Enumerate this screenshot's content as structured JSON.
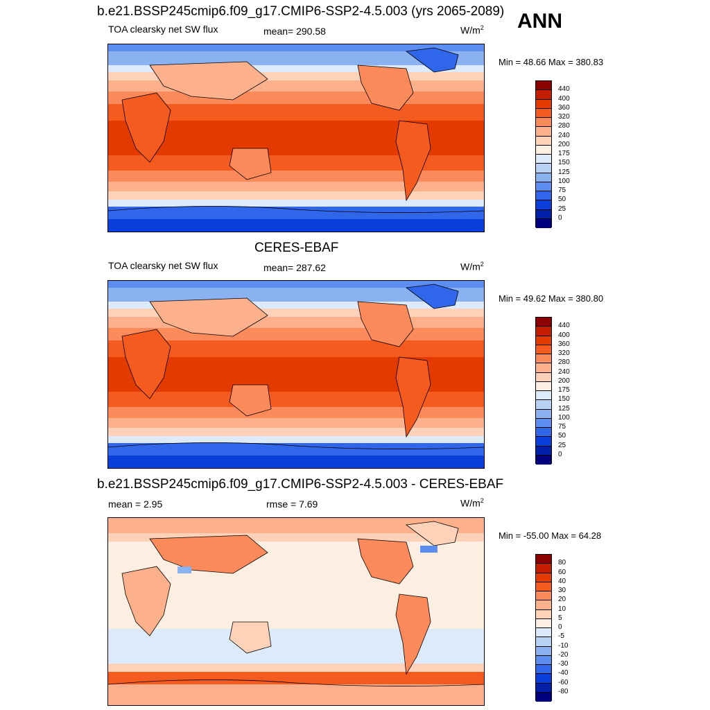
{
  "season": "ANN",
  "panels": [
    {
      "title": "b.e21.BSSP245cmip6.f09_g17.CMIP6-SSP2-4.5.003 (yrs 2065-2089)",
      "variable": "TOA clearsky net SW flux",
      "stat1": "mean= 290.58",
      "stat2": "",
      "units": "W/m",
      "units_sup": "2",
      "minmax": "Min =  48.66 Max = 380.83",
      "colorbar": {
        "labels": [
          "440",
          "400",
          "360",
          "320",
          "280",
          "240",
          "200",
          "175",
          "150",
          "125",
          "100",
          "75",
          "50",
          "25",
          "0"
        ],
        "colors": [
          "#8b0000",
          "#c41e00",
          "#e33a00",
          "#f55a1e",
          "#fc8a5a",
          "#fdb08c",
          "#fdd2b8",
          "#fdeee2",
          "#dceaf9",
          "#b8d2f5",
          "#8ab1f0",
          "#5b8ef0",
          "#2f66ea",
          "#0a3fd9",
          "#0020a8",
          "#00007f"
        ]
      }
    },
    {
      "title": "CERES-EBAF",
      "variable": "TOA clearsky net SW flux",
      "stat1": "mean= 287.62",
      "stat2": "",
      "units": "W/m",
      "units_sup": "2",
      "minmax": "Min =  49.62 Max = 380.80",
      "colorbar": {
        "labels": [
          "440",
          "400",
          "360",
          "320",
          "280",
          "240",
          "200",
          "175",
          "150",
          "125",
          "100",
          "75",
          "50",
          "25",
          "0"
        ],
        "colors": [
          "#8b0000",
          "#c41e00",
          "#e33a00",
          "#f55a1e",
          "#fc8a5a",
          "#fdb08c",
          "#fdd2b8",
          "#fdeee2",
          "#dceaf9",
          "#b8d2f5",
          "#8ab1f0",
          "#5b8ef0",
          "#2f66ea",
          "#0a3fd9",
          "#0020a8",
          "#00007f"
        ]
      }
    },
    {
      "title": "b.e21.BSSP245cmip6.f09_g17.CMIP6-SSP2-4.5.003 - CERES-EBAF",
      "variable": "",
      "stat1": "mean =   2.95",
      "stat2": "rmse =   7.69",
      "units": "W/m",
      "units_sup": "2",
      "minmax": "Min = -55.00 Max =  64.28",
      "colorbar": {
        "labels": [
          "80",
          "60",
          "40",
          "30",
          "20",
          "10",
          "5",
          "0",
          "-5",
          "-10",
          "-20",
          "-30",
          "-40",
          "-60",
          "-80"
        ],
        "colors": [
          "#8b0000",
          "#c41e00",
          "#e33a00",
          "#f55a1e",
          "#fc8a5a",
          "#fdb08c",
          "#fdd2b8",
          "#fdeee2",
          "#dceaf9",
          "#b8d2f5",
          "#8ab1f0",
          "#5b8ef0",
          "#2f66ea",
          "#0a3fd9",
          "#0020a8",
          "#00007f"
        ]
      }
    }
  ]
}
